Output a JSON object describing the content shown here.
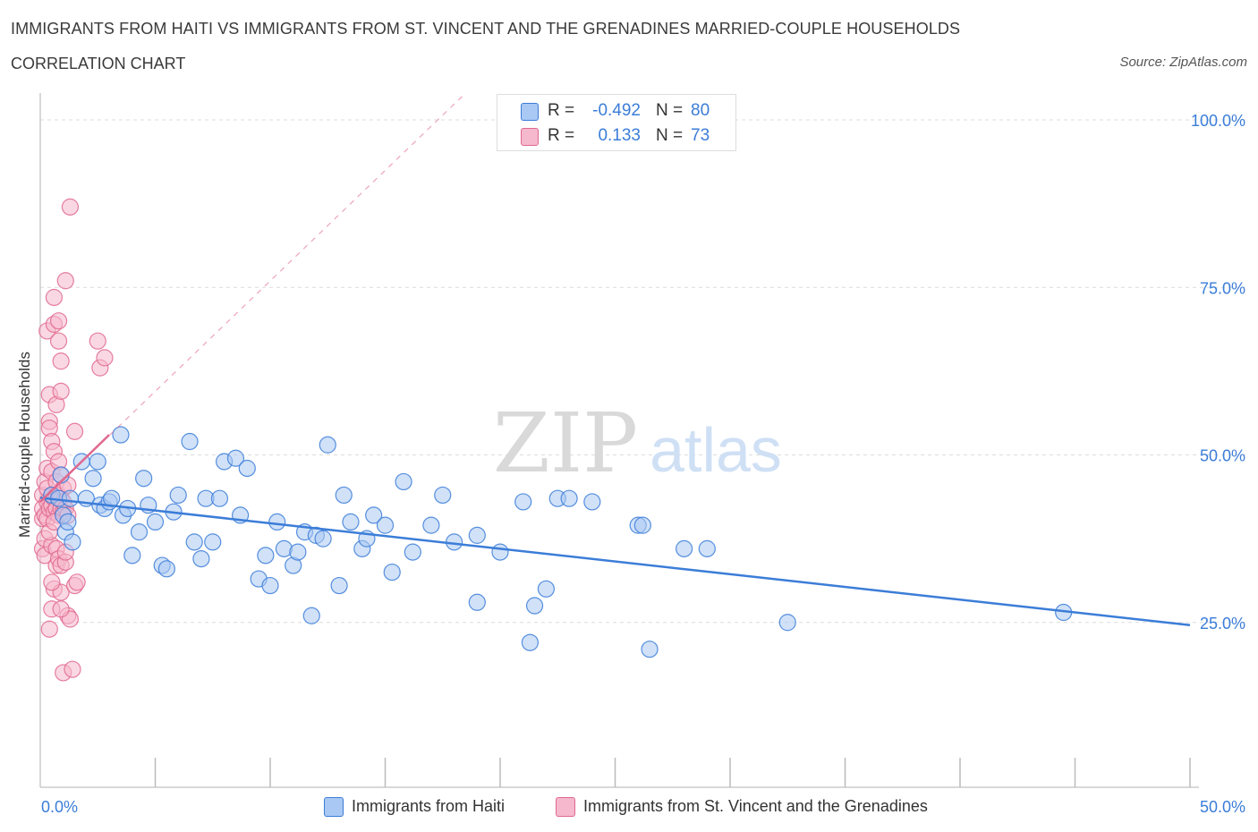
{
  "title": "IMMIGRANTS FROM HAITI VS IMMIGRANTS FROM ST. VINCENT AND THE GRENADINES MARRIED-COUPLE HOUSEHOLDS",
  "subtitle": "CORRELATION CHART",
  "source": "Source: ZipAtlas.com",
  "watermark": {
    "zip": "ZIP",
    "atlas": "atlas"
  },
  "legend_top": {
    "rows": [
      {
        "r_label": "R =",
        "r_value": "-0.492",
        "n_label": "N =",
        "n_value": "80",
        "color": "#a9c8f3"
      },
      {
        "r_label": "R =",
        "r_value": "0.133",
        "n_label": "N =",
        "n_value": "73",
        "color": "#f5b8cc"
      }
    ]
  },
  "legend_bottom": [
    {
      "label": "Immigrants from Haiti",
      "color": "#a9c8f3"
    },
    {
      "label": "Immigrants from St. Vincent and the Grenadines",
      "color": "#f5b8cc"
    }
  ],
  "chart_data": {
    "type": "scatter",
    "title": "IMMIGRANTS FROM HAITI VS IMMIGRANTS FROM ST. VINCENT AND THE GRENADINES MARRIED-COUPLE HOUSEHOLDS",
    "xlabel": "",
    "ylabel": "Married-couple Households",
    "xlim": [
      0,
      50
    ],
    "ylim": [
      0,
      100
    ],
    "x_tick_labels": [
      "0.0%",
      "50.0%"
    ],
    "y_tick_labels": [
      "25.0%",
      "50.0%",
      "75.0%",
      "100.0%"
    ],
    "y_tick_values": [
      25,
      50,
      75,
      100
    ],
    "grid": "horizontal dashed",
    "colors": {
      "haiti": "#3b7dd8",
      "haiti_fill": "#a9c8f3",
      "svg": "#e0688f",
      "svg_fill": "#f5b8cc",
      "tick_text": "#3b7dd8"
    },
    "series": [
      {
        "name": "Immigrants from Haiti",
        "trend": [
          [
            0,
            43.6
          ],
          [
            50,
            24.6
          ]
        ],
        "points": [
          [
            0.5,
            44.0
          ],
          [
            0.8,
            43.5
          ],
          [
            0.9,
            47.0
          ],
          [
            1.0,
            41.0
          ],
          [
            1.1,
            38.5
          ],
          [
            1.2,
            40.0
          ],
          [
            1.3,
            43.5
          ],
          [
            1.4,
            37.0
          ],
          [
            1.8,
            49.0
          ],
          [
            2.0,
            43.5
          ],
          [
            2.3,
            46.5
          ],
          [
            2.5,
            49.0
          ],
          [
            2.6,
            42.5
          ],
          [
            2.8,
            42.0
          ],
          [
            3.0,
            43.0
          ],
          [
            3.1,
            43.5
          ],
          [
            3.5,
            53.0
          ],
          [
            3.6,
            41.0
          ],
          [
            3.8,
            42.0
          ],
          [
            4.0,
            35.0
          ],
          [
            4.3,
            38.5
          ],
          [
            4.5,
            46.5
          ],
          [
            4.7,
            42.5
          ],
          [
            5.0,
            40.0
          ],
          [
            5.3,
            33.5
          ],
          [
            5.5,
            33.0
          ],
          [
            5.8,
            41.5
          ],
          [
            6.0,
            44.0
          ],
          [
            6.5,
            52.0
          ],
          [
            6.7,
            37.0
          ],
          [
            7.0,
            34.5
          ],
          [
            7.2,
            43.5
          ],
          [
            7.5,
            37.0
          ],
          [
            7.8,
            43.5
          ],
          [
            8.0,
            49.0
          ],
          [
            8.5,
            49.5
          ],
          [
            8.7,
            41.0
          ],
          [
            9.0,
            48.0
          ],
          [
            9.5,
            31.5
          ],
          [
            9.8,
            35.0
          ],
          [
            10.0,
            30.5
          ],
          [
            10.3,
            40.0
          ],
          [
            10.6,
            36.0
          ],
          [
            11.0,
            33.5
          ],
          [
            11.2,
            35.5
          ],
          [
            11.5,
            38.5
          ],
          [
            11.8,
            26.0
          ],
          [
            12.0,
            38.0
          ],
          [
            12.3,
            37.5
          ],
          [
            12.5,
            51.5
          ],
          [
            13.0,
            30.5
          ],
          [
            13.2,
            44.0
          ],
          [
            13.5,
            40.0
          ],
          [
            14.0,
            36.0
          ],
          [
            14.2,
            37.5
          ],
          [
            14.5,
            41.0
          ],
          [
            15.0,
            39.5
          ],
          [
            15.3,
            32.5
          ],
          [
            15.8,
            46.0
          ],
          [
            16.2,
            35.5
          ],
          [
            17.0,
            39.5
          ],
          [
            17.5,
            44.0
          ],
          [
            18.0,
            37.0
          ],
          [
            19.0,
            28.0
          ],
          [
            19.0,
            38.0
          ],
          [
            20.0,
            35.5
          ],
          [
            21.0,
            43.0
          ],
          [
            21.3,
            22.0
          ],
          [
            21.5,
            27.5
          ],
          [
            22.0,
            30.0
          ],
          [
            22.5,
            43.5
          ],
          [
            23.0,
            43.5
          ],
          [
            24.0,
            43.0
          ],
          [
            26.0,
            39.5
          ],
          [
            26.2,
            39.5
          ],
          [
            26.5,
            21.0
          ],
          [
            28.0,
            36.0
          ],
          [
            29.0,
            36.0
          ],
          [
            32.5,
            25.0
          ],
          [
            44.5,
            26.5
          ]
        ]
      },
      {
        "name": "Immigrants from St. Vincent and the Grenadines",
        "trend": [
          [
            0,
            43.0
          ],
          [
            3.0,
            53.0
          ]
        ],
        "extension": [
          [
            0,
            43.0
          ],
          [
            18.5,
            104.0
          ]
        ],
        "points": [
          [
            0.1,
            44.0
          ],
          [
            0.1,
            42.0
          ],
          [
            0.1,
            40.5
          ],
          [
            0.1,
            36.0
          ],
          [
            0.2,
            46.0
          ],
          [
            0.2,
            37.5
          ],
          [
            0.2,
            35.0
          ],
          [
            0.2,
            41.0
          ],
          [
            0.3,
            48.0
          ],
          [
            0.3,
            45.0
          ],
          [
            0.3,
            43.0
          ],
          [
            0.3,
            40.5
          ],
          [
            0.3,
            68.5
          ],
          [
            0.4,
            59.0
          ],
          [
            0.4,
            55.0
          ],
          [
            0.4,
            54.0
          ],
          [
            0.4,
            42.0
          ],
          [
            0.4,
            24.0
          ],
          [
            0.5,
            52.0
          ],
          [
            0.5,
            47.5
          ],
          [
            0.5,
            44.0
          ],
          [
            0.5,
            42.5
          ],
          [
            0.5,
            36.5
          ],
          [
            0.5,
            27.0
          ],
          [
            0.6,
            73.5
          ],
          [
            0.6,
            69.5
          ],
          [
            0.6,
            50.5
          ],
          [
            0.6,
            43.5
          ],
          [
            0.6,
            41.5
          ],
          [
            0.6,
            30.0
          ],
          [
            0.7,
            57.5
          ],
          [
            0.7,
            46.0
          ],
          [
            0.7,
            44.0
          ],
          [
            0.7,
            42.0
          ],
          [
            0.7,
            36.0
          ],
          [
            0.7,
            33.5
          ],
          [
            0.8,
            70.0
          ],
          [
            0.8,
            67.0
          ],
          [
            0.8,
            49.0
          ],
          [
            0.8,
            44.0
          ],
          [
            0.8,
            41.0
          ],
          [
            0.8,
            34.5
          ],
          [
            0.9,
            64.0
          ],
          [
            0.9,
            59.5
          ],
          [
            0.9,
            47.0
          ],
          [
            0.9,
            43.5
          ],
          [
            0.9,
            42.0
          ],
          [
            0.9,
            33.5
          ],
          [
            0.9,
            29.5
          ],
          [
            1.0,
            45.0
          ],
          [
            1.0,
            43.0
          ],
          [
            1.0,
            41.5
          ],
          [
            1.0,
            17.5
          ],
          [
            1.1,
            76.0
          ],
          [
            1.1,
            42.0
          ],
          [
            1.1,
            34.0
          ],
          [
            1.2,
            41.0
          ],
          [
            1.2,
            26.0
          ],
          [
            1.3,
            87.0
          ],
          [
            1.3,
            25.5
          ],
          [
            1.4,
            18.0
          ],
          [
            1.5,
            53.5
          ],
          [
            1.5,
            30.5
          ],
          [
            1.6,
            31.0
          ],
          [
            1.2,
            45.5
          ],
          [
            0.4,
            38.5
          ],
          [
            0.6,
            40.0
          ],
          [
            0.9,
            27.0
          ],
          [
            1.1,
            35.5
          ],
          [
            2.5,
            67.0
          ],
          [
            2.6,
            63.0
          ],
          [
            2.8,
            64.5
          ],
          [
            0.5,
            31.0
          ]
        ]
      }
    ]
  }
}
